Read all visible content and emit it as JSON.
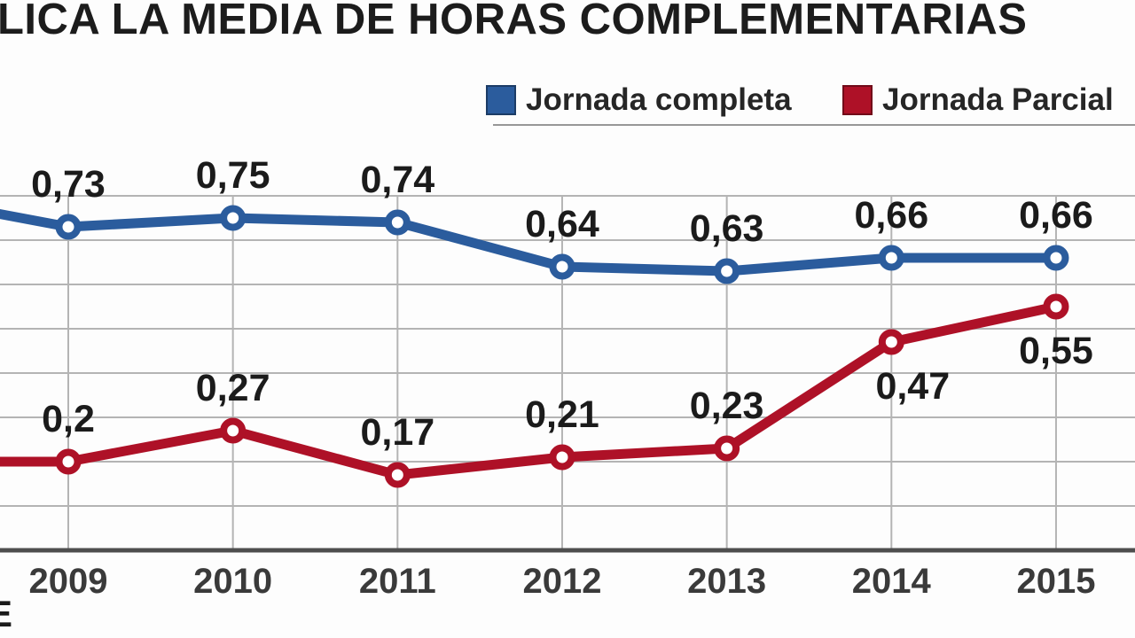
{
  "title": {
    "text": "LICA LA MEDIA DE HORAS COMPLEMENTARIAS"
  },
  "legend": {
    "items": [
      {
        "label": "Jornada completa",
        "color": "#2b5c9d"
      },
      {
        "label": "Jornada Parcial",
        "color": "#ae1127"
      }
    ]
  },
  "source": {
    "partial_text": "E"
  },
  "colors": {
    "grid": "#b4b4b4",
    "axis": "#4e4e4e",
    "label_text": "#1b1b1b",
    "tick_text": "#3a3a3a"
  },
  "chart_data": {
    "type": "line",
    "x": [
      2009,
      2010,
      2011,
      2012,
      2013,
      2014,
      2015
    ],
    "xlabel_ticks": [
      "2009",
      "2010",
      "2011",
      "2012",
      "2013",
      "2014",
      "2015"
    ],
    "ylim": [
      0,
      0.8
    ],
    "grid_step": 0.1,
    "grid": true,
    "legend_position": "top",
    "decimal_separator": ",",
    "series": [
      {
        "name": "Jornada completa",
        "color": "#2b5c9d",
        "values": [
          0.73,
          0.75,
          0.74,
          0.64,
          0.63,
          0.66,
          0.66
        ],
        "labels": [
          "0,73",
          "0,75",
          "0,74",
          "0,64",
          "0,63",
          "0,66",
          "0,66"
        ],
        "label_side": [
          "above",
          "above",
          "above",
          "above",
          "above",
          "above",
          "above"
        ],
        "label_dx": [
          0,
          0,
          0,
          0,
          0,
          0,
          0
        ]
      },
      {
        "name": "Jornada Parcial",
        "color": "#ae1127",
        "values": [
          0.2,
          0.27,
          0.17,
          0.21,
          0.23,
          0.47,
          0.55
        ],
        "labels": [
          "0,2",
          "0,27",
          "0,17",
          "0,21",
          "0,23",
          "0,47",
          "0,55"
        ],
        "label_side": [
          "above",
          "above",
          "above",
          "above",
          "above",
          "below",
          "below"
        ],
        "label_dx": [
          0,
          0,
          0,
          0,
          0,
          24,
          0
        ]
      }
    ]
  }
}
